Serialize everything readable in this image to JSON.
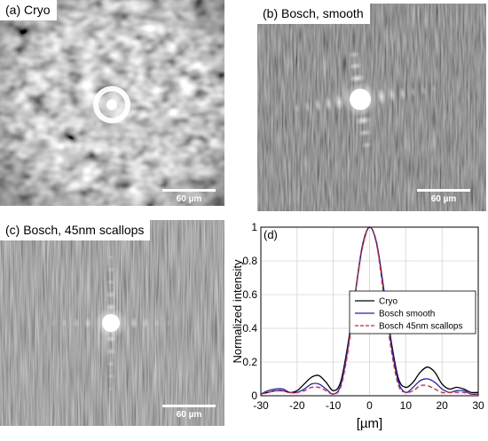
{
  "panels": {
    "a": {
      "label": "(a) Cryo",
      "scale": "60 µm"
    },
    "b": {
      "label": "(b) Bosch, smooth",
      "scale": "60 µm"
    },
    "c": {
      "label": "(c) Bosch, 45nm scallops",
      "scale": "60 µm"
    }
  },
  "colors": {
    "cryo": "#000000",
    "smooth": "#1f1fd6",
    "scallops": "#e02020"
  },
  "chart_data": {
    "type": "line",
    "panel_label": "(d)",
    "xlabel": "[µm]",
    "ylabel": "Normalized intensity",
    "xlim": [
      -30,
      30
    ],
    "ylim": [
      0,
      1
    ],
    "xticks": [
      -30,
      -20,
      -10,
      0,
      10,
      20,
      30
    ],
    "yticks": [
      0,
      0.2,
      0.4,
      0.6,
      0.8,
      1
    ],
    "grid": true,
    "legend_position": "center-right",
    "series": [
      {
        "name": "Cryo",
        "style": "solid",
        "x": [
          -30,
          -28,
          -26,
          -24,
          -22,
          -20,
          -18,
          -16,
          -14,
          -12,
          -10,
          -8,
          -6,
          -4,
          -2,
          0,
          2,
          4,
          6,
          8,
          10,
          12,
          14,
          16,
          18,
          20,
          22,
          24,
          26,
          28,
          30
        ],
        "y": [
          0.01,
          0.02,
          0.03,
          0.03,
          0.02,
          0.03,
          0.07,
          0.11,
          0.12,
          0.08,
          0.03,
          0.08,
          0.3,
          0.6,
          0.88,
          1.0,
          0.9,
          0.62,
          0.32,
          0.1,
          0.05,
          0.08,
          0.14,
          0.17,
          0.14,
          0.07,
          0.04,
          0.05,
          0.04,
          0.02,
          0.02
        ]
      },
      {
        "name": "Bosch smooth",
        "style": "solid",
        "x": [
          -30,
          -28,
          -26,
          -24,
          -22,
          -20,
          -18,
          -16,
          -14,
          -12,
          -10,
          -8,
          -6,
          -4,
          -2,
          0,
          2,
          4,
          6,
          8,
          10,
          12,
          14,
          16,
          18,
          20,
          22,
          24,
          26,
          28,
          30
        ],
        "y": [
          0.01,
          0.03,
          0.04,
          0.04,
          0.02,
          0.02,
          0.04,
          0.07,
          0.07,
          0.04,
          0.01,
          0.06,
          0.28,
          0.6,
          0.89,
          1.0,
          0.9,
          0.61,
          0.3,
          0.08,
          0.02,
          0.05,
          0.09,
          0.1,
          0.08,
          0.04,
          0.02,
          0.03,
          0.03,
          0.01,
          0.01
        ]
      },
      {
        "name": "Bosch 45nm scallops",
        "style": "dashed",
        "x": [
          -30,
          -28,
          -26,
          -24,
          -22,
          -20,
          -18,
          -16,
          -14,
          -12,
          -10,
          -8,
          -6,
          -4,
          -2,
          0,
          2,
          4,
          6,
          8,
          10,
          12,
          14,
          16,
          18,
          20,
          22,
          24,
          26,
          28,
          30
        ],
        "y": [
          0.01,
          0.02,
          0.03,
          0.03,
          0.02,
          0.02,
          0.03,
          0.05,
          0.05,
          0.03,
          0.01,
          0.05,
          0.26,
          0.59,
          0.88,
          1.0,
          0.89,
          0.58,
          0.27,
          0.06,
          0.02,
          0.03,
          0.06,
          0.06,
          0.04,
          0.02,
          0.02,
          0.02,
          0.02,
          0.01,
          0.01
        ]
      }
    ]
  }
}
